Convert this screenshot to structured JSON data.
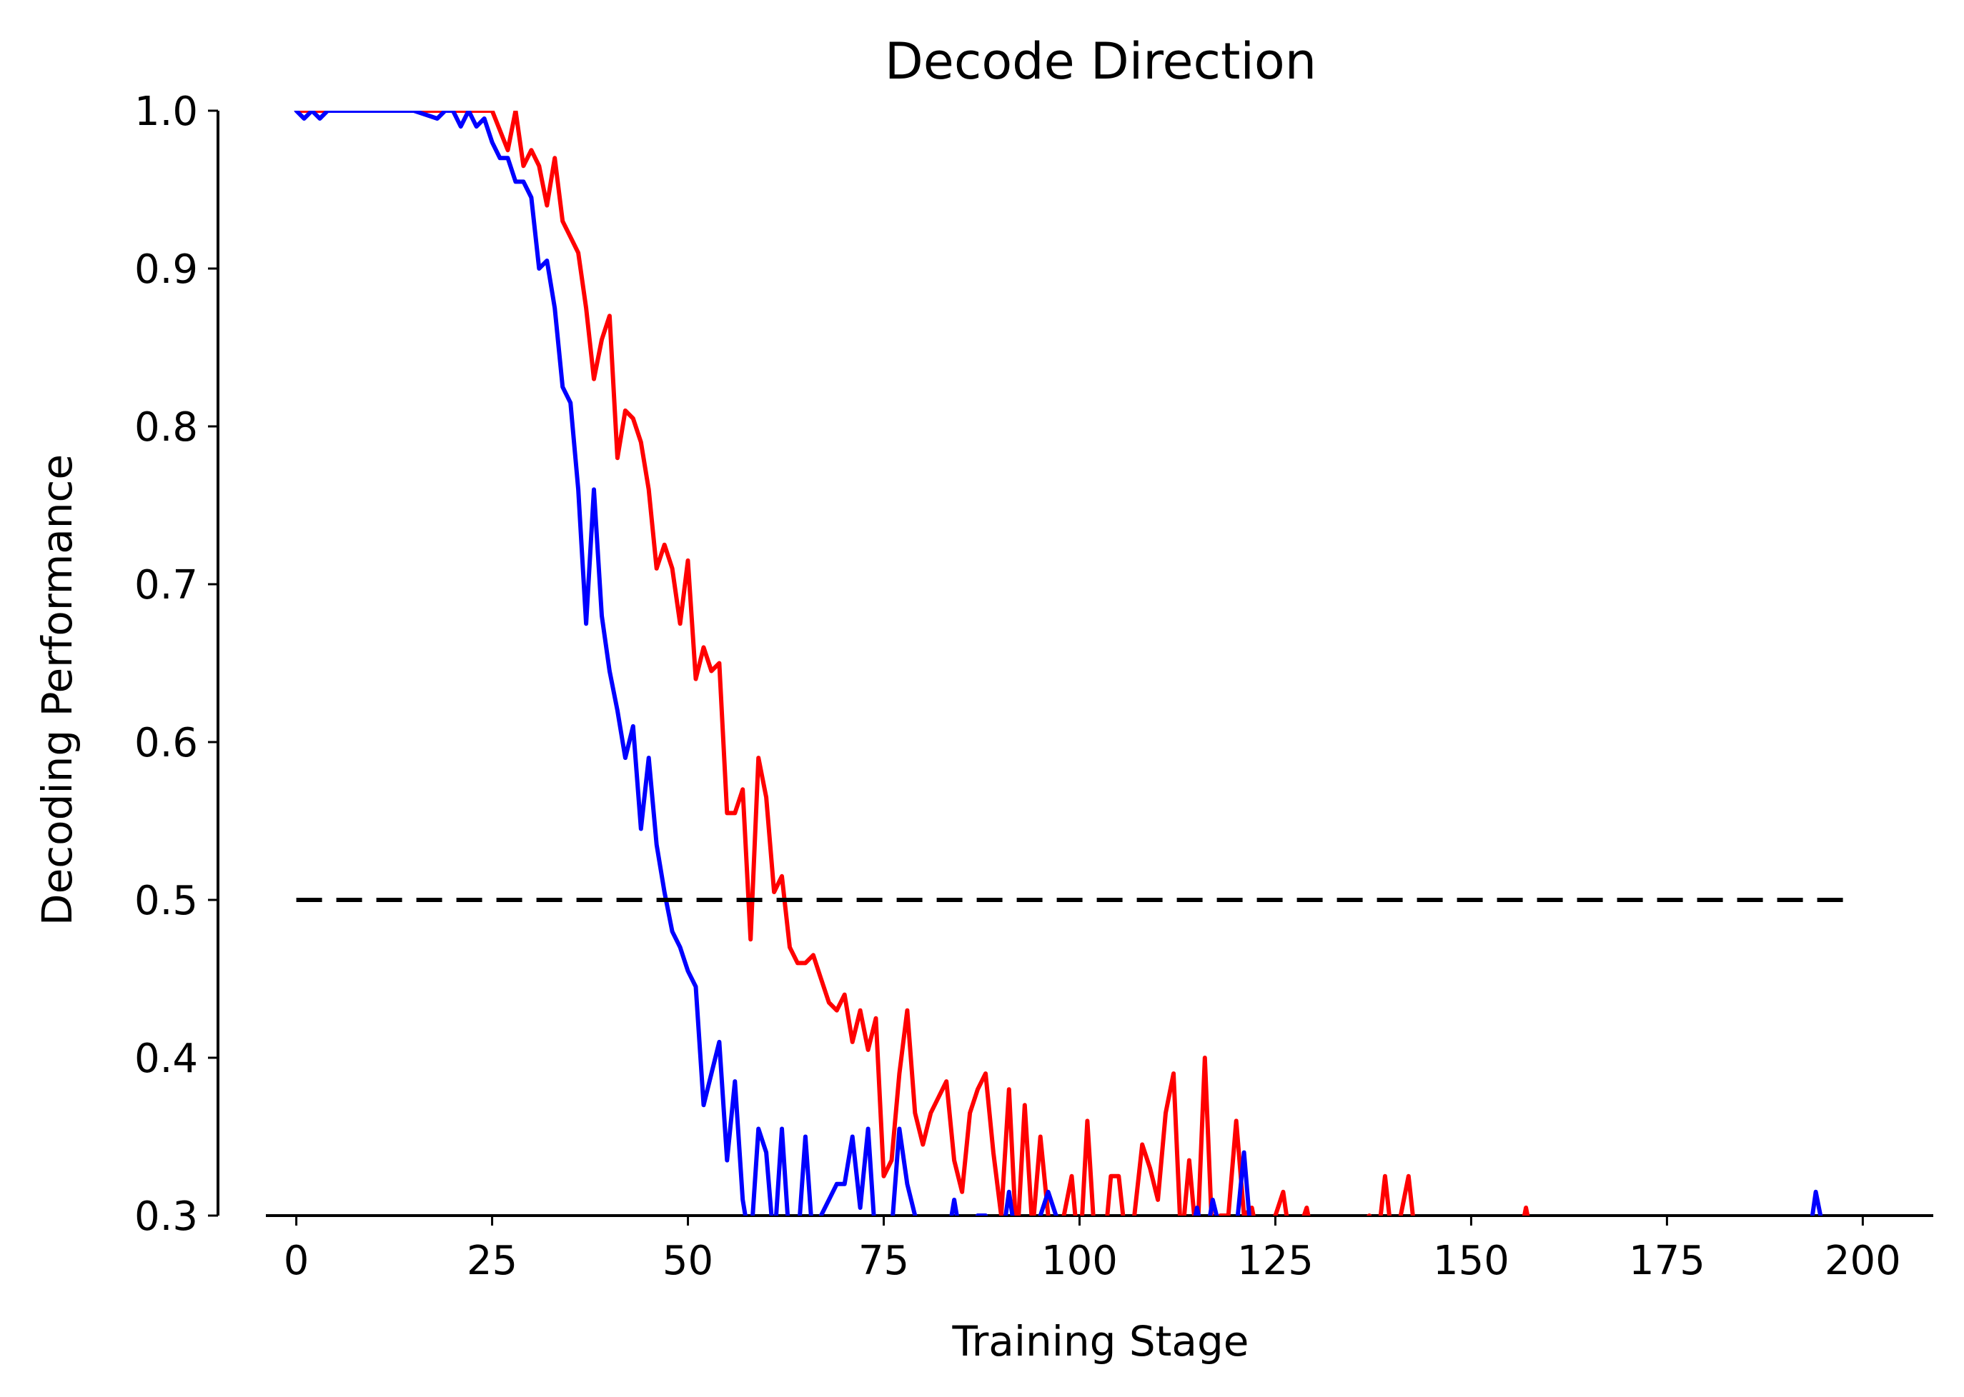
{
  "chart_data": {
    "type": "line",
    "title": "Decode Direction",
    "xlabel": "Training Stage",
    "ylabel": "Decoding Performance",
    "xlim": [
      -10,
      209
    ],
    "ylim": [
      0.3,
      1.0
    ],
    "xticks": [
      "0",
      "25",
      "50",
      "75",
      "100",
      "125",
      "150",
      "175",
      "200"
    ],
    "yticks": [
      "0.3",
      "0.4",
      "0.5",
      "0.6",
      "0.7",
      "0.8",
      "0.9",
      "1.0"
    ],
    "grid": false,
    "legend": "none",
    "reference_line": {
      "y": 0.5,
      "x_range": [
        0,
        199
      ],
      "style": "dashed",
      "color": "#000000"
    },
    "series": [
      {
        "color": "#ff0000",
        "x": [
          0,
          5,
          10,
          15,
          20,
          22,
          25,
          27,
          28,
          29,
          30,
          31,
          32,
          33,
          34,
          35,
          36,
          37,
          38,
          39,
          40,
          41,
          42,
          43,
          44,
          45,
          46,
          47,
          48,
          49,
          50,
          51,
          52,
          53,
          54,
          55,
          56,
          57,
          58,
          59,
          60,
          61,
          62,
          63,
          64,
          65,
          66,
          67,
          68,
          69,
          70,
          71,
          72,
          73,
          74,
          75,
          76,
          77,
          78,
          79,
          80,
          81,
          82,
          83,
          84,
          85,
          86,
          87,
          88,
          89,
          90,
          91,
          92,
          93,
          94,
          95,
          96,
          97,
          98,
          99,
          100,
          101,
          102,
          103,
          104,
          105,
          106,
          107,
          108,
          109,
          110,
          111,
          112,
          113,
          114,
          115,
          116,
          117,
          118,
          119,
          120,
          121,
          122,
          123,
          124,
          125,
          126,
          127,
          128,
          129,
          130,
          135,
          137,
          138,
          139,
          140,
          141,
          142,
          143,
          150,
          156,
          157,
          158,
          165,
          175,
          185,
          199
        ],
        "y": [
          1.0,
          1.0,
          1.0,
          1.0,
          1.0,
          1.0,
          1.0,
          0.975,
          1.0,
          0.965,
          0.975,
          0.965,
          0.94,
          0.97,
          0.93,
          0.92,
          0.91,
          0.875,
          0.83,
          0.855,
          0.87,
          0.78,
          0.81,
          0.805,
          0.79,
          0.76,
          0.71,
          0.725,
          0.71,
          0.675,
          0.715,
          0.64,
          0.66,
          0.645,
          0.65,
          0.555,
          0.555,
          0.57,
          0.475,
          0.59,
          0.565,
          0.505,
          0.515,
          0.47,
          0.46,
          0.46,
          0.465,
          0.45,
          0.435,
          0.43,
          0.44,
          0.41,
          0.43,
          0.405,
          0.425,
          0.325,
          0.335,
          0.39,
          0.43,
          0.365,
          0.345,
          0.365,
          0.375,
          0.385,
          0.335,
          0.315,
          0.365,
          0.38,
          0.39,
          0.34,
          0.3,
          0.38,
          0.28,
          0.37,
          0.29,
          0.35,
          0.3,
          0.28,
          0.3,
          0.325,
          0.27,
          0.36,
          0.28,
          0.27,
          0.325,
          0.325,
          0.28,
          0.3,
          0.345,
          0.33,
          0.31,
          0.365,
          0.39,
          0.28,
          0.335,
          0.28,
          0.4,
          0.28,
          0.3,
          0.3,
          0.36,
          0.3,
          0.305,
          0.28,
          0.29,
          0.3,
          0.315,
          0.28,
          0.29,
          0.305,
          0.28,
          0.29,
          0.3,
          0.28,
          0.325,
          0.28,
          0.3,
          0.325,
          0.28,
          0.29,
          0.28,
          0.305,
          0.28,
          0.29,
          0.29,
          0.29,
          0.29
        ]
      },
      {
        "color": "#0000ff",
        "x": [
          0,
          1,
          2,
          3,
          4,
          5,
          10,
          15,
          18,
          19,
          20,
          21,
          22,
          23,
          24,
          25,
          26,
          27,
          28,
          29,
          30,
          31,
          32,
          33,
          34,
          35,
          36,
          37,
          38,
          39,
          40,
          41,
          42,
          43,
          44,
          45,
          46,
          47,
          48,
          49,
          50,
          51,
          52,
          53,
          54,
          55,
          56,
          57,
          58,
          59,
          60,
          61,
          62,
          63,
          64,
          65,
          66,
          67,
          68,
          69,
          70,
          71,
          72,
          73,
          74,
          75,
          76,
          77,
          78,
          79,
          80,
          83,
          84,
          85,
          86,
          87,
          88,
          89,
          90,
          91,
          92,
          93,
          94,
          95,
          96,
          97,
          98,
          100,
          105,
          110,
          114,
          115,
          116,
          117,
          118,
          119,
          120,
          121,
          122,
          125,
          140,
          160,
          180,
          193,
          194,
          195,
          199
        ],
        "y": [
          1.0,
          0.995,
          1.0,
          0.995,
          1.0,
          1.0,
          1.0,
          1.0,
          0.995,
          1.0,
          1.0,
          0.99,
          1.0,
          0.99,
          0.995,
          0.98,
          0.97,
          0.97,
          0.955,
          0.955,
          0.945,
          0.9,
          0.905,
          0.875,
          0.825,
          0.815,
          0.76,
          0.675,
          0.76,
          0.68,
          0.645,
          0.62,
          0.59,
          0.61,
          0.545,
          0.59,
          0.535,
          0.505,
          0.48,
          0.47,
          0.455,
          0.445,
          0.37,
          0.39,
          0.41,
          0.335,
          0.385,
          0.31,
          0.28,
          0.355,
          0.34,
          0.28,
          0.355,
          0.28,
          0.28,
          0.35,
          0.28,
          0.3,
          0.31,
          0.32,
          0.32,
          0.35,
          0.305,
          0.355,
          0.28,
          0.28,
          0.29,
          0.355,
          0.32,
          0.3,
          0.285,
          0.28,
          0.31,
          0.28,
          0.29,
          0.3,
          0.3,
          0.28,
          0.28,
          0.315,
          0.28,
          0.28,
          0.28,
          0.3,
          0.315,
          0.3,
          0.28,
          0.28,
          0.28,
          0.28,
          0.28,
          0.305,
          0.28,
          0.31,
          0.29,
          0.28,
          0.29,
          0.34,
          0.28,
          0.28,
          0.28,
          0.28,
          0.28,
          0.28,
          0.315,
          0.29,
          0.29
        ]
      }
    ]
  }
}
